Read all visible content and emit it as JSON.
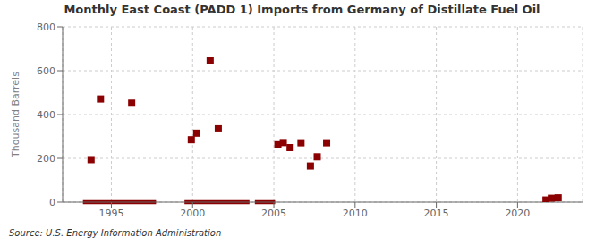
{
  "chart_data": {
    "type": "scatter",
    "title": "Monthly East Coast (PADD 1) Imports from Germany of Distillate Fuel Oil",
    "ylabel": "Thousand Barrels",
    "annotations": [
      "Source: U.S. Energy Information Administration"
    ],
    "color": "#8B0000",
    "marker": "square",
    "x": [
      1993.75,
      1994.33,
      1996.25,
      1999.92,
      2000.25,
      2001.08,
      2001.58,
      2005.25,
      2005.58,
      2006.0,
      2006.67,
      2007.25,
      2007.67,
      2008.25,
      2021.75,
      2022.08,
      2022.5
    ],
    "values": [
      194,
      471,
      452,
      285,
      315,
      645,
      335,
      262,
      272,
      249,
      271,
      165,
      207,
      271,
      10,
      18,
      20
    ],
    "zero_bars": [
      {
        "x_start": 1993.25,
        "x_end": 1997.75,
        "y": 0
      },
      {
        "x_start": 1999.5,
        "x_end": 2003.5,
        "y": 0
      },
      {
        "x_start": 2003.83,
        "x_end": 2005.08,
        "y": 0
      }
    ],
    "xlim": [
      1992.0,
      2024.0
    ],
    "ylim": [
      0,
      800
    ],
    "xticks": [
      1995,
      2000,
      2005,
      2010,
      2015,
      2020
    ],
    "yticks": [
      0,
      200,
      400,
      600,
      800
    ],
    "grid": true
  }
}
